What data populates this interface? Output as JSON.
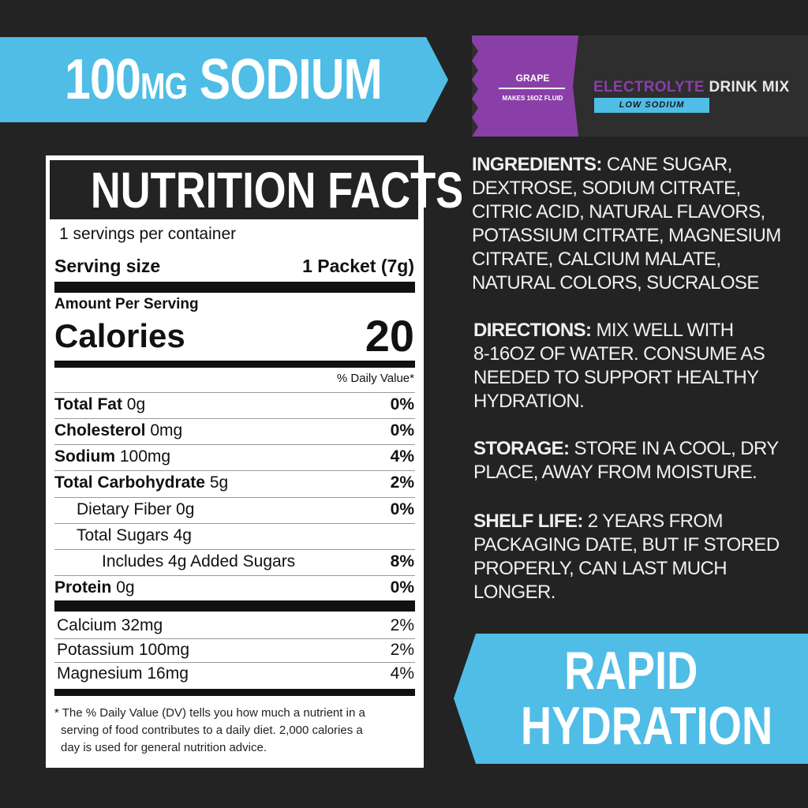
{
  "colors": {
    "accent_blue": "#4fbde6",
    "purple": "#8a3fa8",
    "background": "#232323"
  },
  "top_banner": {
    "amount": "100",
    "unit": "MG",
    "word": "SODIUM"
  },
  "packet": {
    "flavor": "GRAPE",
    "makes": "MAKES 16OZ FLUID",
    "brand_a": "ELECTROLYTE",
    "brand_b": "DRINK MIX",
    "badge": "LOW SODIUM"
  },
  "label": {
    "title": "NUTRITION FACTS",
    "servings": "1 servings per container",
    "serving_size_label": "Serving size",
    "serving_size_value": "1 Packet (7g)",
    "amount_per_serving": "Amount Per Serving",
    "calories_label": "Calories",
    "calories_value": "20",
    "dv_header": "% Daily Value*",
    "nutrients": [
      {
        "name": "Total Fat",
        "amount": "0g",
        "dv": "0%"
      },
      {
        "name": "Cholesterol",
        "amount": "0mg",
        "dv": "0%"
      },
      {
        "name": "Sodium",
        "amount": "100mg",
        "dv": "4%"
      },
      {
        "name": "Total Carbohydrate",
        "amount": "5g",
        "dv": "2%"
      },
      {
        "name": "Dietary Fiber 0g",
        "amount": "",
        "dv": "0%"
      },
      {
        "name": "Total Sugars 4g",
        "amount": "",
        "dv": ""
      },
      {
        "name": "Includes 4g Added Sugars",
        "amount": "",
        "dv": "8%"
      },
      {
        "name": "Protein",
        "amount": "0g",
        "dv": "0%"
      }
    ],
    "minerals": [
      {
        "name": "Calcium 32mg",
        "dv": "2%"
      },
      {
        "name": "Potassium 100mg",
        "dv": "2%"
      },
      {
        "name": "Magnesium 16mg",
        "dv": "4%"
      }
    ],
    "footnote": [
      "* The % Daily Value (DV) tells you how much a nutrient in a",
      "serving of food contributes to a daily diet. 2,000 calories a",
      "day is used for general nutrition advice."
    ]
  },
  "info": {
    "ingredients_label": "INGREDIENTS:",
    "ingredients_lines": [
      " CANE SUGAR,",
      "DEXTROSE, SODIUM CITRATE,",
      "CITRIC ACID, NATURAL FLAVORS,",
      "POTASSIUM CITRATE, MAGNESIUM",
      "CITRATE, CALCIUM MALATE,",
      "NATURAL COLORS, SUCRALOSE"
    ],
    "directions_label": "DIRECTIONS:",
    "directions_lines": [
      " MIX WELL WITH",
      "8-16OZ OF WATER. CONSUME AS",
      "NEEDED TO SUPPORT HEALTHY",
      "HYDRATION."
    ],
    "storage_label": "STORAGE:",
    "storage_lines": [
      " STORE IN A COOL, DRY",
      "PLACE, AWAY FROM MOISTURE."
    ],
    "shelf_label": "SHELF LIFE:",
    "shelf_lines": [
      " 2 YEARS FROM",
      "PACKAGING DATE, BUT IF STORED",
      "PROPERLY, CAN LAST MUCH",
      "LONGER."
    ]
  },
  "bottom_banner": {
    "line1": "RAPID",
    "line2": "HYDRATION"
  }
}
